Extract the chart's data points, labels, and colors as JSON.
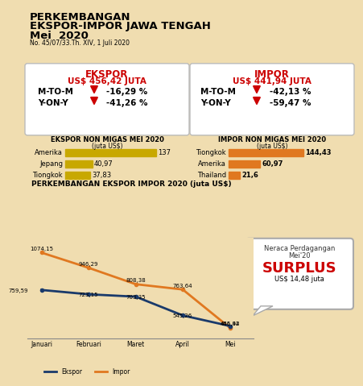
{
  "title_line1": "PERKEMBANGAN",
  "title_line2": "EKSPOR-IMPOR JAWA TENGAH",
  "title_line3": "Mei  2020",
  "subtitle": "No. 45/07/33.Th. XIV, 1 Juli 2020",
  "bg_color": "#f0ddb0",
  "ekspor_title": "EKSPOR",
  "ekspor_value": "US$ 456,42 JUTA",
  "ekspor_mtom_label": "M-TO-M",
  "ekspor_mtom_value": "-16,29 %",
  "ekspor_yony_label": "Y-ON-Y",
  "ekspor_yony_value": "-41,26 %",
  "impor_title": "IMPOR",
  "impor_value": "US$ 441,94 JUTA",
  "impor_mtom_label": "M-TO-M",
  "impor_mtom_value": "-42,13 %",
  "impor_yony_label": "Y-ON-Y",
  "impor_yony_value": "-59,47 %",
  "ekspor_bar_title": "EKSPOR NON MIGAS MEI 2020",
  "ekspor_bar_subtitle": "(juta US$)",
  "ekspor_bar_categories": [
    "Amerika",
    "Jepang",
    "Tiongkok"
  ],
  "ekspor_bar_values": [
    137,
    40.97,
    37.83
  ],
  "ekspor_bar_color": "#c8a800",
  "impor_bar_title": "IMPOR NON MIGAS MEI 2020",
  "impor_bar_subtitle": "(juta US$)",
  "impor_bar_categories": [
    "Tiongkok",
    "Amerika",
    "Thailand"
  ],
  "impor_bar_values": [
    144.43,
    60.97,
    21.6
  ],
  "impor_bar_color": "#e07820",
  "line_title": "PERKEMBANGAN EKSPOR IMPOR 2020 (juta US$)",
  "months": [
    "Januari",
    "Februari",
    "Maret",
    "April",
    "Mei"
  ],
  "ekspor_line": [
    759.59,
    723.15,
    703.35,
    545.26,
    456.42
  ],
  "impor_line": [
    1074.15,
    946.29,
    808.38,
    763.64,
    441.94
  ],
  "ekspor_line_color": "#1a3a6b",
  "impor_line_color": "#e07820",
  "surplus_label1": "Neraca Perdagangan",
  "surplus_label2": "Mei'20",
  "surplus_word": "SURPLUS",
  "surplus_value": "US$ 14,48 juta",
  "red_color": "#cc0000",
  "box_color": "#ffffff",
  "ekspor_bar_value_labels": [
    "137",
    "40,97",
    "37,83"
  ],
  "impor_bar_value_labels": [
    "144,43",
    "60,97",
    "21,6"
  ]
}
